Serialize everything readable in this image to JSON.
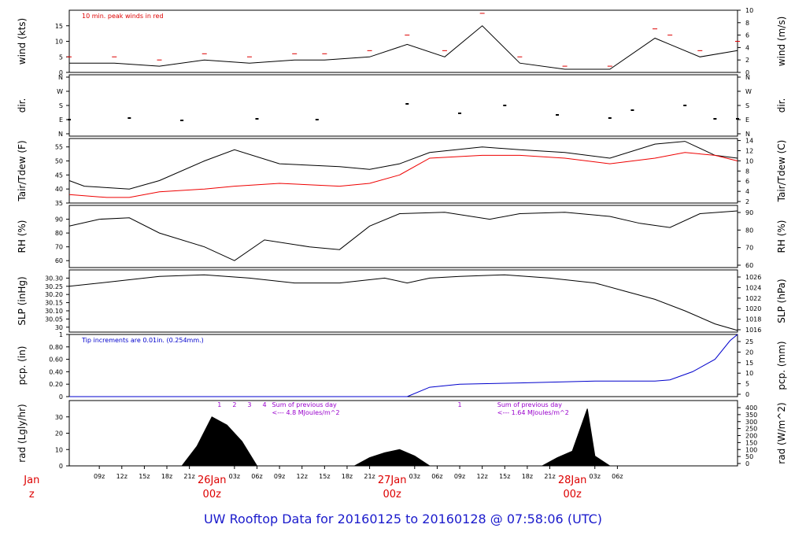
{
  "title": "UW Rooftop Data for 20160125  to  20160128 @ 07:58:06  (UTC)",
  "colors": {
    "title": "#1a1acc",
    "date": "#dd0000",
    "peak": "#dd0000",
    "dew": "#ee0000",
    "pcp": "#0000cc",
    "note": "#9900cc",
    "ink": "#000000"
  },
  "chart_data": [
    {
      "type": "line",
      "panel": "wind",
      "ylabel": "wind (kts)",
      "ylabel_right": "wind (m/s)",
      "ylim": [
        0,
        20
      ],
      "yticks": [
        0,
        5,
        10,
        15
      ],
      "ylim_right": [
        0,
        10
      ],
      "yticks_right": [
        0,
        2,
        4,
        6,
        8,
        10
      ],
      "annotation": "10 min. peak winds in red",
      "series": [
        {
          "name": "wind",
          "x": [
            0,
            6,
            12,
            18,
            24,
            30,
            34,
            40,
            45,
            50,
            55,
            60,
            66,
            72,
            78,
            80,
            84,
            89
          ],
          "values": [
            3,
            3,
            2,
            4,
            3,
            4,
            4,
            5,
            9,
            5,
            15,
            3,
            1,
            1,
            11,
            9,
            5,
            7
          ]
        },
        {
          "name": "10 min. peak winds",
          "x": [
            0,
            6,
            12,
            18,
            24,
            30,
            34,
            40,
            45,
            50,
            55,
            60,
            66,
            72,
            78,
            80,
            84,
            89
          ],
          "values": [
            5,
            5,
            4,
            6,
            5,
            6,
            6,
            7,
            12,
            7,
            19,
            5,
            2,
            2,
            14,
            12,
            7,
            10
          ]
        }
      ]
    },
    {
      "type": "scatter",
      "panel": "dir",
      "ylabel": "dir.",
      "ylabel_right": "dir.",
      "categories": [
        "N",
        "E",
        "S",
        "W",
        "N"
      ],
      "series": [
        {
          "name": "direction (deg)",
          "x": [
            0,
            8,
            15,
            25,
            33,
            45,
            52,
            58,
            65,
            72,
            75,
            82,
            86,
            89
          ],
          "values": [
            90,
            100,
            85,
            95,
            90,
            190,
            130,
            180,
            120,
            100,
            150,
            180,
            95,
            95
          ]
        }
      ]
    },
    {
      "type": "line",
      "panel": "temperature",
      "ylabel": "Tair/Tdew (F)",
      "ylabel_right": "Tair/Tdew (C)",
      "ylim": [
        35,
        58
      ],
      "yticks": [
        35,
        40,
        45,
        50,
        55
      ],
      "ylim_right": [
        1.7,
        14.4
      ],
      "yticks_right": [
        2,
        4,
        6,
        8,
        10,
        12,
        14
      ],
      "series": [
        {
          "name": "Tair",
          "x": [
            0,
            2,
            8,
            12,
            18,
            22,
            28,
            36,
            40,
            44,
            48,
            55,
            60,
            66,
            72,
            78,
            82,
            86,
            89
          ],
          "values": [
            43,
            41,
            40,
            43,
            50,
            54,
            49,
            48,
            47,
            49,
            53,
            55,
            54,
            53,
            51,
            56,
            57,
            52,
            51
          ]
        },
        {
          "name": "Tdew",
          "x": [
            0,
            5,
            8,
            12,
            18,
            22,
            28,
            36,
            40,
            44,
            48,
            55,
            60,
            66,
            72,
            78,
            82,
            86,
            89
          ],
          "values": [
            38,
            37,
            37,
            39,
            40,
            41,
            42,
            41,
            42,
            45,
            51,
            52,
            52,
            51,
            49,
            51,
            53,
            52,
            50
          ]
        }
      ]
    },
    {
      "type": "line",
      "panel": "rh",
      "ylabel": "RH (%)",
      "ylabel_right": "RH (%)",
      "ylim": [
        55,
        100
      ],
      "yticks": [
        60,
        70,
        80,
        90
      ],
      "series": [
        {
          "name": "RH",
          "x": [
            0,
            4,
            8,
            12,
            18,
            22,
            26,
            32,
            36,
            40,
            44,
            50,
            56,
            60,
            66,
            72,
            76,
            80,
            84,
            89
          ],
          "values": [
            85,
            90,
            91,
            80,
            70,
            60,
            75,
            70,
            68,
            85,
            94,
            95,
            90,
            94,
            95,
            92,
            87,
            84,
            94,
            96
          ]
        }
      ]
    },
    {
      "type": "line",
      "panel": "slp",
      "ylabel": "SLP (inHg)",
      "ylabel_right": "SLP (hPa)",
      "ylim": [
        29.97,
        30.35
      ],
      "yticks": [
        30.0,
        30.05,
        30.1,
        30.15,
        30.2,
        30.25,
        30.3
      ],
      "yticks_right": [
        1016,
        1018,
        1020,
        1022,
        1024,
        1026
      ],
      "series": [
        {
          "name": "SLP",
          "x": [
            0,
            6,
            12,
            18,
            24,
            30,
            36,
            42,
            45,
            48,
            52,
            58,
            64,
            70,
            74,
            78,
            82,
            86,
            89
          ],
          "values": [
            30.25,
            30.28,
            30.31,
            30.32,
            30.3,
            30.27,
            30.27,
            30.3,
            30.27,
            30.3,
            30.31,
            30.32,
            30.3,
            30.27,
            30.22,
            30.17,
            30.1,
            30.02,
            29.98
          ]
        }
      ]
    },
    {
      "type": "line",
      "panel": "precip",
      "ylabel": "pcp. (in)",
      "ylabel_right": "pcp. (mm)",
      "ylim": [
        0,
        1.0
      ],
      "yticks": [
        0.0,
        0.2,
        0.4,
        0.6,
        0.8,
        1.0
      ],
      "yticks_right": [
        0,
        5,
        10,
        15,
        20,
        25
      ],
      "annotation": "Tip increments are 0.01in. (0.254mm.)",
      "series": [
        {
          "name": "cumulative precip",
          "x": [
            0,
            45,
            48,
            52,
            60,
            70,
            78,
            80,
            83,
            86,
            88,
            89
          ],
          "values": [
            0,
            0,
            0.15,
            0.2,
            0.22,
            0.25,
            0.25,
            0.27,
            0.4,
            0.6,
            0.9,
            1.0
          ]
        }
      ]
    },
    {
      "type": "area",
      "panel": "radiation",
      "ylabel": "rad (Lgly/hr)",
      "ylabel_right": "rad (W/m^2)",
      "ylim": [
        0,
        40
      ],
      "yticks": [
        0,
        10,
        20,
        30
      ],
      "yticks_right": [
        0,
        50,
        100,
        150,
        200,
        250,
        300,
        350,
        400
      ],
      "day_markers": [
        "1",
        "2",
        "3",
        "4",
        "1"
      ],
      "annotations": [
        {
          "line1": "Sum of previous day",
          "line2": "<--- 4.8 MJoules/m^2"
        },
        {
          "line1": "Sum of previous day",
          "line2": "<--- 1.64 MJoules/m^2"
        }
      ],
      "series": [
        {
          "name": "solar radiation",
          "x": [
            15,
            17,
            19,
            21,
            23,
            25,
            38,
            40,
            42,
            44,
            46,
            48,
            63,
            65,
            67,
            69,
            70,
            72
          ],
          "values": [
            0,
            12,
            30,
            25,
            15,
            0,
            0,
            5,
            8,
            10,
            6,
            0,
            0,
            5,
            9,
            35,
            6,
            0
          ]
        }
      ]
    }
  ],
  "xaxis": {
    "hour_ticks": [
      {
        "x": 1,
        "label": "09z"
      },
      {
        "x": 4,
        "label": "12z"
      },
      {
        "x": 7,
        "label": "15z"
      },
      {
        "x": 10,
        "label": "18z"
      },
      {
        "x": 13,
        "label": "21z"
      },
      {
        "x": 19,
        "label": "03z"
      },
      {
        "x": 22,
        "label": "06z"
      },
      {
        "x": 25,
        "label": "09z"
      },
      {
        "x": 28,
        "label": "12z"
      },
      {
        "x": 31,
        "label": "15z"
      },
      {
        "x": 34,
        "label": "18z"
      },
      {
        "x": 37,
        "label": "21z"
      },
      {
        "x": 43,
        "label": "03z"
      },
      {
        "x": 46,
        "label": "06z"
      },
      {
        "x": 49,
        "label": "09z"
      },
      {
        "x": 52,
        "label": "12z"
      },
      {
        "x": 55,
        "label": "15z"
      },
      {
        "x": 58,
        "label": "18z"
      },
      {
        "x": 61,
        "label": "21z"
      },
      {
        "x": 67,
        "label": "03z"
      },
      {
        "x": 70,
        "label": "06z"
      }
    ],
    "day_ticks": [
      {
        "x": -8,
        "date": "Jan",
        "hour": "z"
      },
      {
        "x": 16,
        "date": "26Jan",
        "hour": "00z"
      },
      {
        "x": 40,
        "date": "27Jan",
        "hour": "00z"
      },
      {
        "x": 64,
        "date": "28Jan",
        "hour": "00z"
      }
    ]
  }
}
